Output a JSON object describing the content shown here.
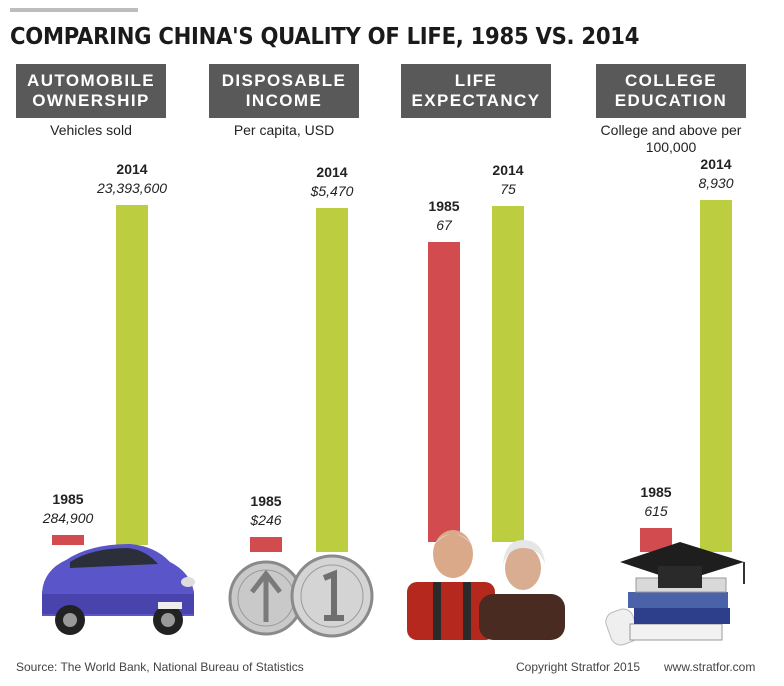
{
  "title": "COMPARING CHINA'S QUALITY OF LIFE, 1985 VS. 2014",
  "colors": {
    "y1985": "#d24b4e",
    "y2014": "#bccd3f",
    "header": "#595959"
  },
  "chart_data": [
    {
      "type": "bar",
      "title": "AUTOMOBILE OWNERSHIP",
      "subtitle": "Vehicles sold",
      "categories": [
        "1985",
        "2014"
      ],
      "values": [
        284900,
        23393600
      ],
      "value_labels": [
        "284,900",
        "23,393,600"
      ]
    },
    {
      "type": "bar",
      "title": "DISPOSABLE INCOME",
      "subtitle": "Per capita, USD",
      "categories": [
        "1985",
        "2014"
      ],
      "values": [
        246,
        5470
      ],
      "value_labels": [
        "$246",
        "$5,470"
      ]
    },
    {
      "type": "bar",
      "title": "LIFE EXPECTANCY",
      "subtitle": "",
      "categories": [
        "1985",
        "2014"
      ],
      "values": [
        67,
        75
      ],
      "value_labels": [
        "67",
        "75"
      ]
    },
    {
      "type": "bar",
      "title": "COLLEGE EDUCATION",
      "subtitle": "College and above per 100,000",
      "categories": [
        "1985",
        "2014"
      ],
      "values": [
        615,
        8930
      ],
      "value_labels": [
        "615",
        "8,930"
      ]
    }
  ],
  "illustrations": [
    "car",
    "coins",
    "elderly-couple",
    "graduation-cap-books"
  ],
  "footer": {
    "source": "Source: The World Bank, National Bureau of Statistics",
    "copyright": "Copyright Stratfor 2015",
    "website": "www.stratfor.com"
  }
}
